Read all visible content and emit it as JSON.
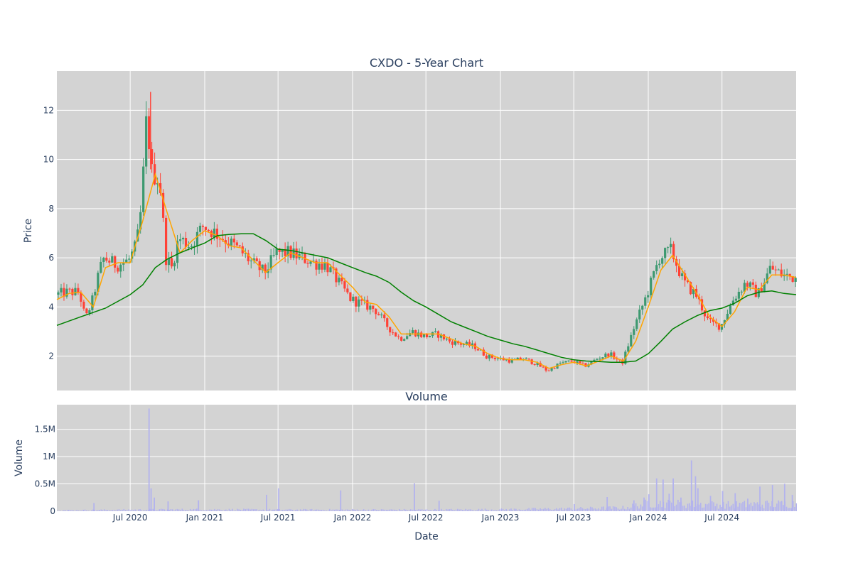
{
  "chart_data": [
    {
      "type": "candlestick",
      "title": "CXDO - 5-Year Chart",
      "xlabel": "",
      "ylabel": "Price",
      "xlim": [
        "2020-01-02",
        "2024-12-31"
      ],
      "ylim": [
        0.6,
        13.6
      ],
      "yticks": [
        2,
        4,
        6,
        8,
        10,
        12
      ],
      "grid": true,
      "plot_bg": "#d3d3d3",
      "colors": {
        "increasing": "#3d9970",
        "decreasing": "#ff4136",
        "ma_short": "#ffa500",
        "ma_long": "#008000"
      },
      "price_path": [
        [
          "2020-01-02",
          4.5
        ],
        [
          "2020-02-01",
          4.6
        ],
        [
          "2020-03-01",
          4.6
        ],
        [
          "2020-03-16",
          3.5
        ],
        [
          "2020-04-01",
          4.2
        ],
        [
          "2020-04-20",
          5.5
        ],
        [
          "2020-05-01",
          6.0
        ],
        [
          "2020-06-01",
          5.7
        ],
        [
          "2020-07-01",
          5.9
        ],
        [
          "2020-07-20",
          6.5
        ],
        [
          "2020-08-01",
          8.0
        ],
        [
          "2020-08-15",
          12.0
        ],
        [
          "2020-08-25",
          9.5
        ],
        [
          "2020-09-15",
          9.2
        ],
        [
          "2020-10-01",
          6.0
        ],
        [
          "2020-10-15",
          5.6
        ],
        [
          "2020-11-01",
          6.8
        ],
        [
          "2020-12-01",
          6.5
        ],
        [
          "2021-01-01",
          7.3
        ],
        [
          "2021-02-01",
          7.0
        ],
        [
          "2021-03-01",
          6.7
        ],
        [
          "2021-04-01",
          6.3
        ],
        [
          "2021-05-01",
          5.8
        ],
        [
          "2021-06-01",
          5.4
        ],
        [
          "2021-07-01",
          6.2
        ],
        [
          "2021-08-01",
          6.2
        ],
        [
          "2021-09-01",
          6.0
        ],
        [
          "2021-10-01",
          5.8
        ],
        [
          "2021-11-01",
          5.7
        ],
        [
          "2021-12-01",
          5.0
        ],
        [
          "2022-01-01",
          4.3
        ],
        [
          "2022-02-01",
          4.1
        ],
        [
          "2022-03-01",
          3.9
        ],
        [
          "2022-04-01",
          3.2
        ],
        [
          "2022-05-01",
          2.7
        ],
        [
          "2022-06-01",
          3.0
        ],
        [
          "2022-07-01",
          2.8
        ],
        [
          "2022-08-01",
          2.9
        ],
        [
          "2022-09-01",
          2.6
        ],
        [
          "2022-10-01",
          2.5
        ],
        [
          "2022-11-01",
          2.4
        ],
        [
          "2022-12-01",
          2.0
        ],
        [
          "2023-01-01",
          1.9
        ],
        [
          "2023-02-01",
          1.8
        ],
        [
          "2023-03-01",
          1.9
        ],
        [
          "2023-04-01",
          1.7
        ],
        [
          "2023-05-01",
          1.4
        ],
        [
          "2023-06-01",
          1.7
        ],
        [
          "2023-07-01",
          1.8
        ],
        [
          "2023-08-01",
          1.6
        ],
        [
          "2023-09-01",
          1.9
        ],
        [
          "2023-10-01",
          2.1
        ],
        [
          "2023-11-01",
          1.7
        ],
        [
          "2023-12-01",
          3.2
        ],
        [
          "2024-01-01",
          4.5
        ],
        [
          "2024-02-01",
          6.0
        ],
        [
          "2024-03-01",
          6.3
        ],
        [
          "2024-04-01",
          5.0
        ],
        [
          "2024-05-01",
          4.5
        ],
        [
          "2024-06-01",
          3.4
        ],
        [
          "2024-07-01",
          3.2
        ],
        [
          "2024-08-01",
          4.3
        ],
        [
          "2024-09-01",
          5.0
        ],
        [
          "2024-10-01",
          4.5
        ],
        [
          "2024-11-01",
          5.6
        ],
        [
          "2024-12-01",
          5.3
        ],
        [
          "2024-12-31",
          5.2
        ]
      ],
      "series": [
        {
          "type": "line",
          "color": "#ffa500",
          "points": [
            [
              "2020-01-02",
              4.3
            ],
            [
              "2020-02-01",
              4.55
            ],
            [
              "2020-03-01",
              4.6
            ],
            [
              "2020-04-01",
              4.0
            ],
            [
              "2020-05-01",
              5.6
            ],
            [
              "2020-06-01",
              5.8
            ],
            [
              "2020-07-01",
              5.8
            ],
            [
              "2020-08-01",
              7.5
            ],
            [
              "2020-09-01",
              9.4
            ],
            [
              "2020-10-01",
              7.8
            ],
            [
              "2020-11-01",
              6.2
            ],
            [
              "2020-12-01",
              6.7
            ],
            [
              "2021-01-01",
              7.1
            ],
            [
              "2021-02-01",
              6.9
            ],
            [
              "2021-03-01",
              6.5
            ],
            [
              "2021-04-01",
              6.4
            ],
            [
              "2021-05-01",
              5.9
            ],
            [
              "2021-06-01",
              5.4
            ],
            [
              "2021-07-01",
              5.8
            ],
            [
              "2021-08-01",
              6.2
            ],
            [
              "2021-09-01",
              6.0
            ],
            [
              "2021-10-01",
              5.8
            ],
            [
              "2021-11-01",
              5.8
            ],
            [
              "2021-12-01",
              5.3
            ],
            [
              "2022-01-01",
              4.8
            ],
            [
              "2022-02-01",
              4.2
            ],
            [
              "2022-03-01",
              4.1
            ],
            [
              "2022-04-01",
              3.6
            ],
            [
              "2022-05-01",
              2.9
            ],
            [
              "2022-06-01",
              2.9
            ],
            [
              "2022-07-01",
              2.9
            ],
            [
              "2022-08-01",
              2.9
            ],
            [
              "2022-09-01",
              2.7
            ],
            [
              "2022-10-01",
              2.5
            ],
            [
              "2022-11-01",
              2.4
            ],
            [
              "2022-12-01",
              2.1
            ],
            [
              "2023-01-01",
              1.9
            ],
            [
              "2023-02-01",
              1.85
            ],
            [
              "2023-03-01",
              1.85
            ],
            [
              "2023-04-01",
              1.75
            ],
            [
              "2023-05-01",
              1.5
            ],
            [
              "2023-06-01",
              1.65
            ],
            [
              "2023-07-01",
              1.75
            ],
            [
              "2023-08-01",
              1.6
            ],
            [
              "2023-09-01",
              1.8
            ],
            [
              "2023-10-01",
              2.0
            ],
            [
              "2023-11-01",
              1.8
            ],
            [
              "2023-12-01",
              2.6
            ],
            [
              "2024-01-01",
              4.0
            ],
            [
              "2024-02-01",
              5.5
            ],
            [
              "2024-03-01",
              6.1
            ],
            [
              "2024-04-01",
              5.3
            ],
            [
              "2024-05-01",
              4.5
            ],
            [
              "2024-06-01",
              3.6
            ],
            [
              "2024-07-01",
              3.2
            ],
            [
              "2024-08-01",
              3.8
            ],
            [
              "2024-09-01",
              4.8
            ],
            [
              "2024-10-01",
              4.7
            ],
            [
              "2024-11-01",
              5.3
            ],
            [
              "2024-12-01",
              5.3
            ],
            [
              "2024-12-31",
              5.2
            ]
          ]
        },
        {
          "type": "line",
          "color": "#008000",
          "points": [
            [
              "2020-01-02",
              3.25
            ],
            [
              "2020-03-01",
              3.6
            ],
            [
              "2020-05-01",
              3.95
            ],
            [
              "2020-07-01",
              4.5
            ],
            [
              "2020-08-01",
              4.9
            ],
            [
              "2020-09-01",
              5.6
            ],
            [
              "2020-10-01",
              5.95
            ],
            [
              "2020-11-01",
              6.2
            ],
            [
              "2020-12-01",
              6.4
            ],
            [
              "2021-01-01",
              6.6
            ],
            [
              "2021-02-01",
              6.9
            ],
            [
              "2021-03-01",
              6.95
            ],
            [
              "2021-04-01",
              6.98
            ],
            [
              "2021-05-01",
              6.98
            ],
            [
              "2021-06-01",
              6.7
            ],
            [
              "2021-07-01",
              6.35
            ],
            [
              "2021-08-01",
              6.3
            ],
            [
              "2021-09-01",
              6.2
            ],
            [
              "2021-10-01",
              6.1
            ],
            [
              "2021-11-01",
              6.0
            ],
            [
              "2021-12-01",
              5.8
            ],
            [
              "2022-01-01",
              5.6
            ],
            [
              "2022-02-01",
              5.4
            ],
            [
              "2022-03-01",
              5.25
            ],
            [
              "2022-04-01",
              5.0
            ],
            [
              "2022-05-01",
              4.6
            ],
            [
              "2022-06-01",
              4.25
            ],
            [
              "2022-07-01",
              4.0
            ],
            [
              "2022-08-01",
              3.7
            ],
            [
              "2022-09-01",
              3.4
            ],
            [
              "2022-10-01",
              3.2
            ],
            [
              "2022-11-01",
              3.0
            ],
            [
              "2022-12-01",
              2.8
            ],
            [
              "2023-01-01",
              2.65
            ],
            [
              "2023-02-01",
              2.5
            ],
            [
              "2023-03-01",
              2.4
            ],
            [
              "2023-04-01",
              2.25
            ],
            [
              "2023-05-01",
              2.1
            ],
            [
              "2023-06-01",
              1.95
            ],
            [
              "2023-07-01",
              1.85
            ],
            [
              "2023-08-01",
              1.8
            ],
            [
              "2023-09-01",
              1.78
            ],
            [
              "2023-10-01",
              1.75
            ],
            [
              "2023-11-01",
              1.75
            ],
            [
              "2023-12-01",
              1.8
            ],
            [
              "2024-01-01",
              2.1
            ],
            [
              "2024-02-01",
              2.6
            ],
            [
              "2024-03-01",
              3.1
            ],
            [
              "2024-04-01",
              3.4
            ],
            [
              "2024-05-01",
              3.65
            ],
            [
              "2024-06-01",
              3.85
            ],
            [
              "2024-07-01",
              3.95
            ],
            [
              "2024-08-01",
              4.15
            ],
            [
              "2024-09-01",
              4.45
            ],
            [
              "2024-10-01",
              4.6
            ],
            [
              "2024-11-01",
              4.65
            ],
            [
              "2024-12-01",
              4.55
            ],
            [
              "2024-12-31",
              4.5
            ]
          ]
        }
      ]
    },
    {
      "type": "bar",
      "title": "Volume",
      "xlabel": "Date",
      "ylabel": "Volume",
      "xlim": [
        "2020-01-02",
        "2024-12-31"
      ],
      "ylim": [
        0,
        1950000
      ],
      "yticks": [
        0,
        500000,
        1000000,
        1500000
      ],
      "ytick_labels": [
        "0",
        "0.5M",
        "1M",
        "1.5M"
      ],
      "xticks": [
        "2020-07-01",
        "2021-01-01",
        "2021-07-01",
        "2022-01-01",
        "2022-07-01",
        "2023-01-01",
        "2023-07-01",
        "2024-01-01",
        "2024-07-01"
      ],
      "xtick_labels": [
        "Jul 2020",
        "Jan 2021",
        "Jul 2021",
        "Jan 2022",
        "Jul 2022",
        "Jan 2023",
        "Jul 2023",
        "Jan 2024",
        "Jul 2024"
      ],
      "grid": true,
      "plot_bg": "#d3d3d3",
      "bar_color": "#b3b3ee",
      "baseline_volume": [
        [
          "2020-01-02",
          15000
        ],
        [
          "2020-07-01",
          25000
        ],
        [
          "2021-01-01",
          30000
        ],
        [
          "2021-07-01",
          25000
        ],
        [
          "2022-01-01",
          25000
        ],
        [
          "2022-07-01",
          25000
        ],
        [
          "2023-01-01",
          30000
        ],
        [
          "2023-07-01",
          45000
        ],
        [
          "2023-11-01",
          60000
        ],
        [
          "2024-01-01",
          140000
        ],
        [
          "2024-07-01",
          110000
        ],
        [
          "2024-12-31",
          130000
        ]
      ],
      "spikes": [
        [
          "2020-04-01",
          150000
        ],
        [
          "2020-08-15",
          1880000
        ],
        [
          "2020-08-20",
          420000
        ],
        [
          "2020-08-28",
          250000
        ],
        [
          "2020-10-01",
          180000
        ],
        [
          "2020-12-15",
          200000
        ],
        [
          "2021-06-01",
          300000
        ],
        [
          "2021-07-01",
          420000
        ],
        [
          "2021-12-01",
          380000
        ],
        [
          "2022-06-01",
          510000
        ],
        [
          "2022-08-01",
          190000
        ],
        [
          "2023-07-01",
          130000
        ],
        [
          "2023-09-20",
          260000
        ],
        [
          "2023-11-25",
          200000
        ],
        [
          "2023-12-20",
          250000
        ],
        [
          "2024-01-01",
          310000
        ],
        [
          "2024-01-20",
          600000
        ],
        [
          "2024-02-05",
          580000
        ],
        [
          "2024-02-20",
          320000
        ],
        [
          "2024-03-01",
          600000
        ],
        [
          "2024-03-20",
          250000
        ],
        [
          "2024-04-15",
          930000
        ],
        [
          "2024-04-25",
          640000
        ],
        [
          "2024-05-01",
          420000
        ],
        [
          "2024-06-01",
          280000
        ],
        [
          "2024-07-01",
          370000
        ],
        [
          "2024-08-01",
          330000
        ],
        [
          "2024-09-01",
          230000
        ],
        [
          "2024-10-01",
          450000
        ],
        [
          "2024-11-01",
          480000
        ],
        [
          "2024-12-01",
          500000
        ],
        [
          "2024-12-20",
          300000
        ]
      ]
    }
  ]
}
